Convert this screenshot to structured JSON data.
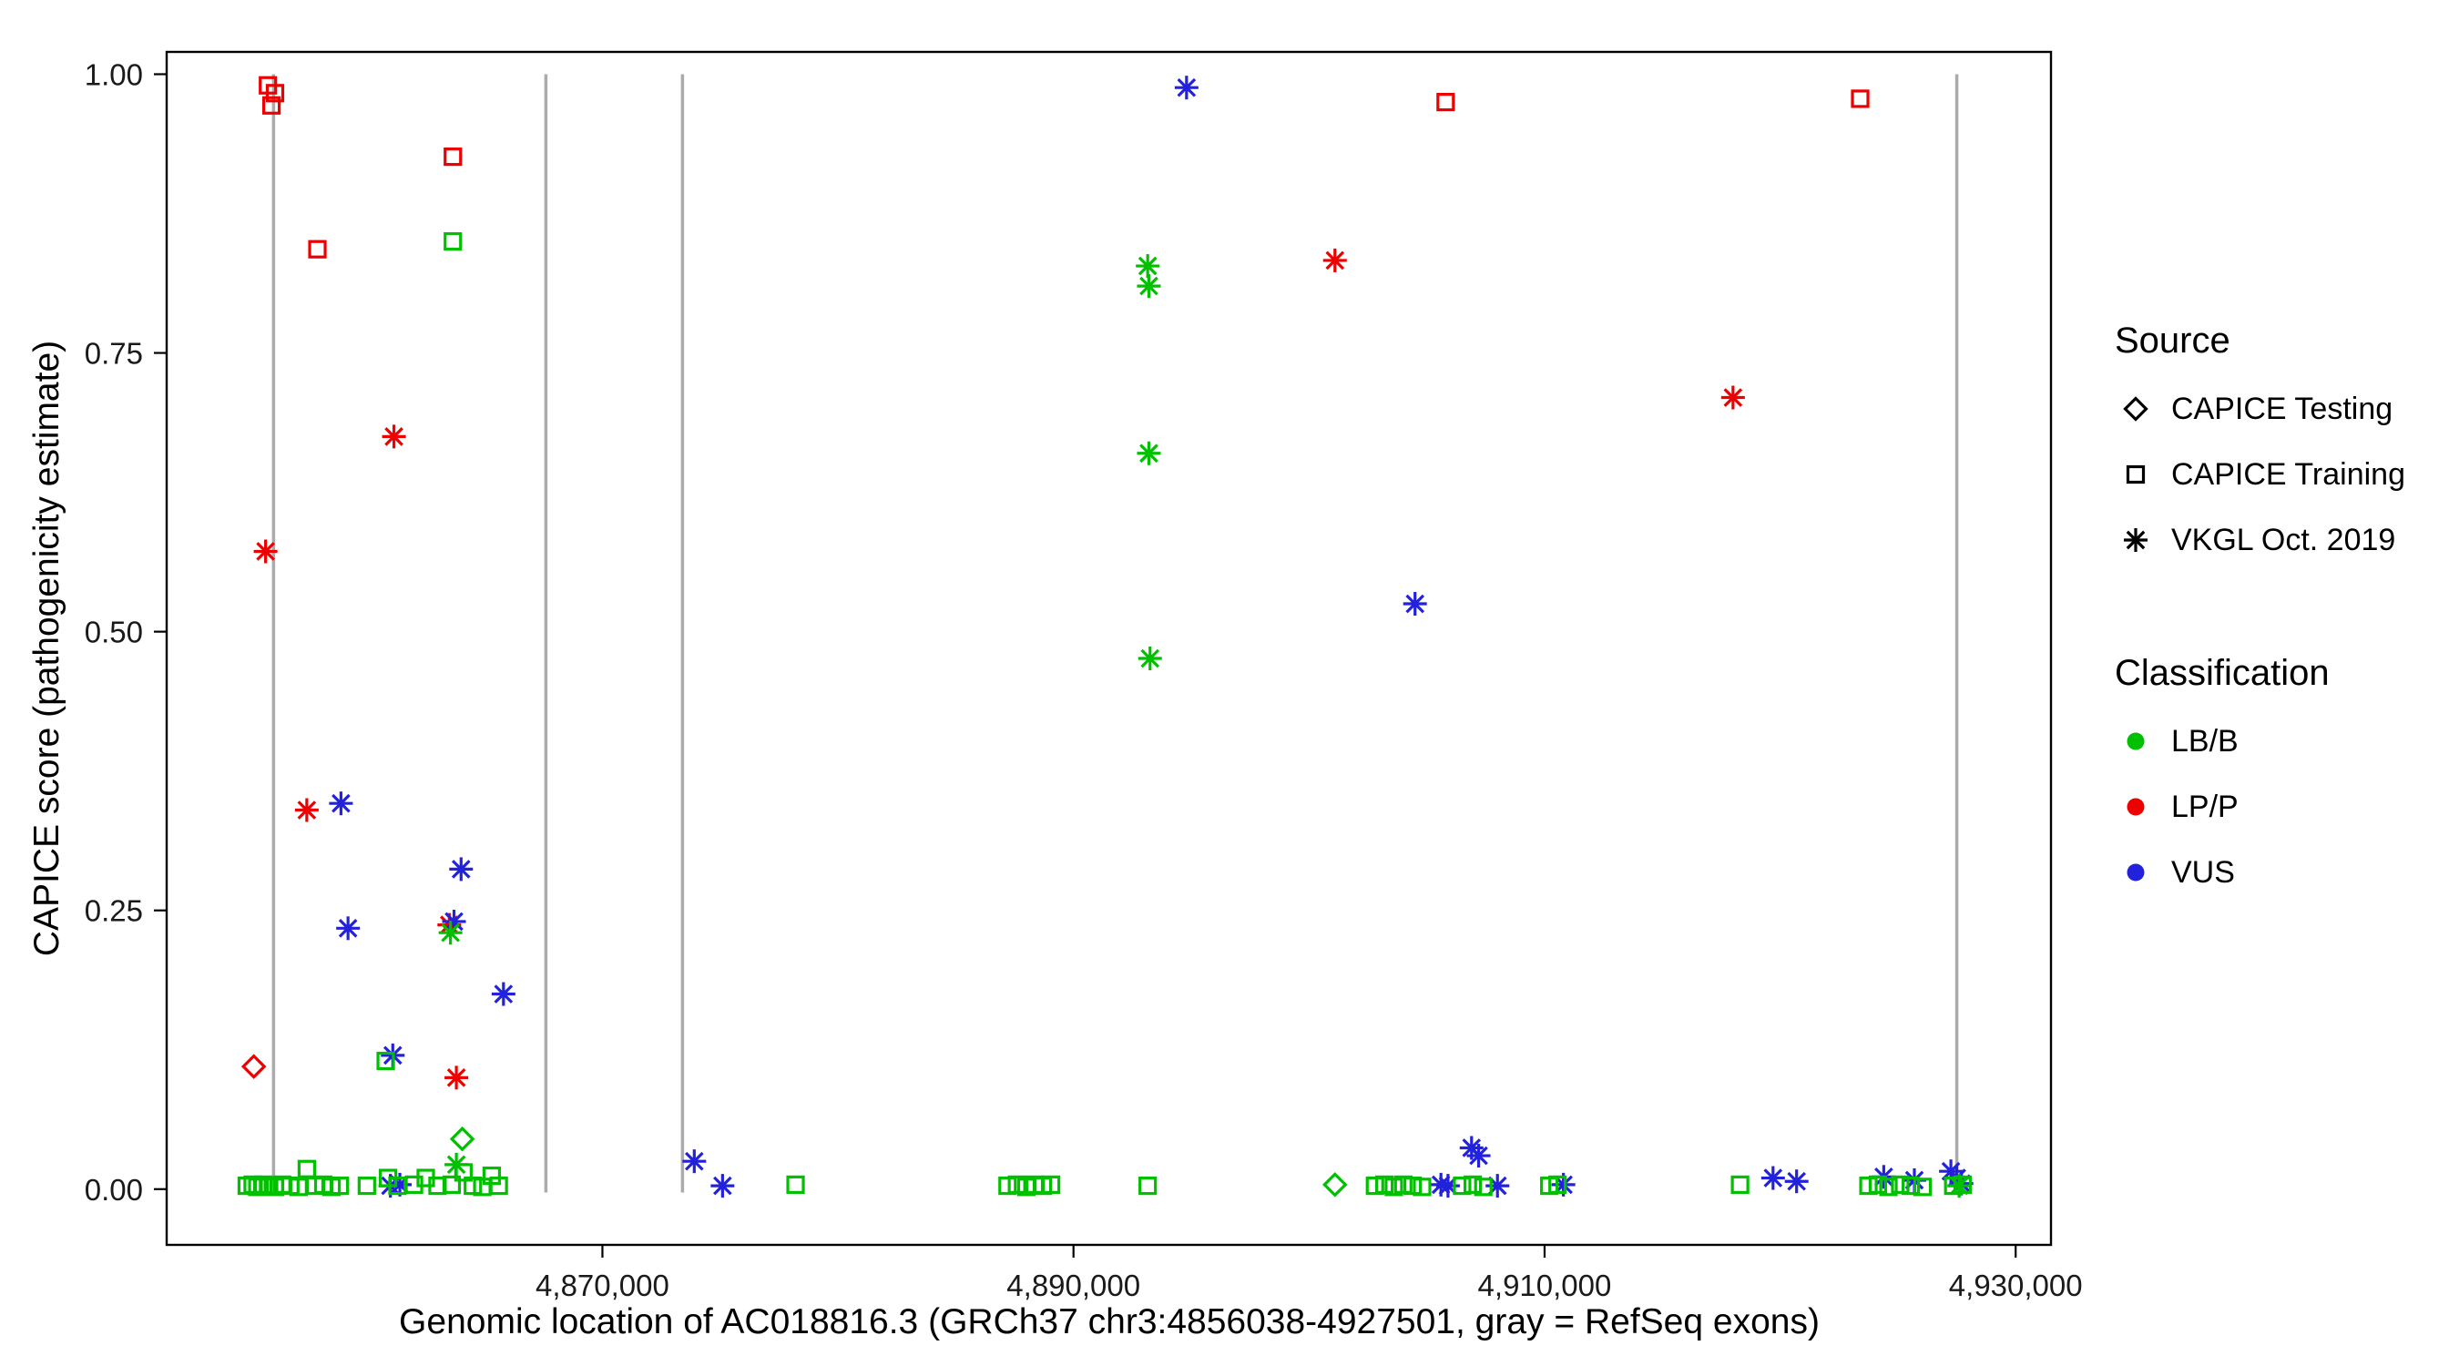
{
  "chart_data": {
    "type": "scatter",
    "title": "",
    "xlabel": "Genomic location of AC018816.3 (GRCh37 chr3:4856038-4927501, gray = RefSeq exons)",
    "ylabel": "CAPICE score (pathogenicity estimate)",
    "xlim": [
      4851500,
      4931500
    ],
    "ylim": [
      -0.05,
      1.02
    ],
    "grid": "off",
    "panel_border_color": "#000000",
    "background_color": "#ffffff",
    "x_ticks": [
      {
        "value": 4870000,
        "label": "4,870,000"
      },
      {
        "value": 4890000,
        "label": "4,890,000"
      },
      {
        "value": 4910000,
        "label": "4,910,000"
      },
      {
        "value": 4930000,
        "label": "4,930,000"
      }
    ],
    "y_ticks": [
      {
        "value": 0.0,
        "label": "0.00"
      },
      {
        "value": 0.25,
        "label": "0.25"
      },
      {
        "value": 0.5,
        "label": "0.50"
      },
      {
        "value": 0.75,
        "label": "0.75"
      },
      {
        "value": 1.0,
        "label": "1.00"
      }
    ],
    "exon_lines": {
      "meaning": "RefSeq exons",
      "color": "#ABABAB",
      "positions": [
        4856038,
        4867600,
        4873400,
        4927501
      ],
      "y_from": -0.003,
      "y_to": 1.0
    },
    "legend": {
      "position": "right",
      "source": {
        "title": "Source",
        "items": [
          {
            "label": "CAPICE Testing",
            "shape": "diamond"
          },
          {
            "label": "CAPICE Training",
            "shape": "square"
          },
          {
            "label": "VKGL Oct. 2019",
            "shape": "asterisk"
          }
        ]
      },
      "classification": {
        "title": "Classification",
        "items": [
          {
            "label": "LB/B",
            "color": "#00C000"
          },
          {
            "label": "LP/P",
            "color": "#EE0000"
          },
          {
            "label": "VUS",
            "color": "#2222DD"
          }
        ]
      }
    },
    "source_shapes": {
      "CAPICE Testing": "diamond",
      "CAPICE Training": "square",
      "VKGL Oct. 2019": "asterisk"
    },
    "classification_colors": {
      "LB/B": "#00C000",
      "LP/P": "#EE0000",
      "VUS": "#2222DD"
    },
    "points_columns": [
      "genomic_position",
      "capice_score",
      "source",
      "classification"
    ],
    "points": [
      [
        4855800,
        0.99,
        "CAPICE Training",
        "LP/P"
      ],
      [
        4856100,
        0.983,
        "CAPICE Training",
        "LP/P"
      ],
      [
        4855950,
        0.972,
        "CAPICE Training",
        "LP/P"
      ],
      [
        4857900,
        0.843,
        "CAPICE Training",
        "LP/P"
      ],
      [
        4863650,
        0.926,
        "CAPICE Training",
        "LP/P"
      ],
      [
        4905800,
        0.975,
        "CAPICE Training",
        "LP/P"
      ],
      [
        4923400,
        0.978,
        "CAPICE Training",
        "LP/P"
      ],
      [
        4863650,
        0.85,
        "CAPICE Training",
        "LB/B"
      ],
      [
        4855200,
        0.11,
        "CAPICE Testing",
        "LP/P"
      ],
      [
        4864050,
        0.045,
        "CAPICE Testing",
        "LB/B"
      ],
      [
        4901100,
        0.004,
        "CAPICE Testing",
        "LB/B"
      ],
      [
        4861150,
        0.675,
        "VKGL Oct. 2019",
        "LP/P"
      ],
      [
        4855700,
        0.572,
        "VKGL Oct. 2019",
        "LP/P"
      ],
      [
        4857450,
        0.34,
        "VKGL Oct. 2019",
        "LP/P"
      ],
      [
        4863500,
        0.237,
        "VKGL Oct. 2019",
        "LP/P"
      ],
      [
        4863800,
        0.1,
        "VKGL Oct. 2019",
        "LP/P"
      ],
      [
        4901100,
        0.833,
        "VKGL Oct. 2019",
        "LP/P"
      ],
      [
        4918000,
        0.71,
        "VKGL Oct. 2019",
        "LP/P"
      ],
      [
        4858900,
        0.346,
        "VKGL Oct. 2019",
        "VUS"
      ],
      [
        4859200,
        0.234,
        "VKGL Oct. 2019",
        "VUS"
      ],
      [
        4864000,
        0.287,
        "VKGL Oct. 2019",
        "VUS"
      ],
      [
        4863700,
        0.24,
        "VKGL Oct. 2019",
        "VUS"
      ],
      [
        4865800,
        0.175,
        "VKGL Oct. 2019",
        "VUS"
      ],
      [
        4861100,
        0.12,
        "VKGL Oct. 2019",
        "VUS"
      ],
      [
        4894800,
        0.988,
        "VKGL Oct. 2019",
        "VUS"
      ],
      [
        4904500,
        0.525,
        "VKGL Oct. 2019",
        "VUS"
      ],
      [
        4873900,
        0.025,
        "VKGL Oct. 2019",
        "VUS"
      ],
      [
        4875100,
        0.003,
        "VKGL Oct. 2019",
        "VUS"
      ],
      [
        4861000,
        0.003,
        "VKGL Oct. 2019",
        "VUS"
      ],
      [
        4861400,
        0.004,
        "VKGL Oct. 2019",
        "VUS"
      ],
      [
        4906900,
        0.037,
        "VKGL Oct. 2019",
        "VUS"
      ],
      [
        4907200,
        0.03,
        "VKGL Oct. 2019",
        "VUS"
      ],
      [
        4905600,
        0.004,
        "VKGL Oct. 2019",
        "VUS"
      ],
      [
        4905900,
        0.003,
        "VKGL Oct. 2019",
        "VUS"
      ],
      [
        4908000,
        0.003,
        "VKGL Oct. 2019",
        "VUS"
      ],
      [
        4910800,
        0.004,
        "VKGL Oct. 2019",
        "VUS"
      ],
      [
        4919700,
        0.01,
        "VKGL Oct. 2019",
        "VUS"
      ],
      [
        4920700,
        0.007,
        "VKGL Oct. 2019",
        "VUS"
      ],
      [
        4924400,
        0.011,
        "VKGL Oct. 2019",
        "VUS"
      ],
      [
        4925700,
        0.008,
        "VKGL Oct. 2019",
        "VUS"
      ],
      [
        4927250,
        0.016,
        "VKGL Oct. 2019",
        "VUS"
      ],
      [
        4927500,
        0.01,
        "VKGL Oct. 2019",
        "VUS"
      ],
      [
        4927700,
        0.005,
        "VKGL Oct. 2019",
        "VUS"
      ],
      [
        4893150,
        0.828,
        "VKGL Oct. 2019",
        "LB/B"
      ],
      [
        4893200,
        0.81,
        "VKGL Oct. 2019",
        "LB/B"
      ],
      [
        4893200,
        0.66,
        "VKGL Oct. 2019",
        "LB/B"
      ],
      [
        4893250,
        0.476,
        "VKGL Oct. 2019",
        "LB/B"
      ],
      [
        4863550,
        0.23,
        "VKGL Oct. 2019",
        "LB/B"
      ],
      [
        4863800,
        0.022,
        "VKGL Oct. 2019",
        "LB/B"
      ],
      [
        4927600,
        0.003,
        "VKGL Oct. 2019",
        "LB/B"
      ],
      [
        4854900,
        0.003,
        "CAPICE Training",
        "LB/B"
      ],
      [
        4855150,
        0.004,
        "CAPICE Training",
        "LB/B"
      ],
      [
        4855350,
        0.002,
        "CAPICE Training",
        "LB/B"
      ],
      [
        4855600,
        0.004,
        "CAPICE Training",
        "LB/B"
      ],
      [
        4855850,
        0.003,
        "CAPICE Training",
        "LB/B"
      ],
      [
        4856100,
        0.002,
        "CAPICE Training",
        "LB/B"
      ],
      [
        4856400,
        0.004,
        "CAPICE Training",
        "LB/B"
      ],
      [
        4856750,
        0.003,
        "CAPICE Training",
        "LB/B"
      ],
      [
        4857100,
        0.002,
        "CAPICE Training",
        "LB/B"
      ],
      [
        4857450,
        0.018,
        "CAPICE Training",
        "LB/B"
      ],
      [
        4857800,
        0.003,
        "CAPICE Training",
        "LB/B"
      ],
      [
        4858150,
        0.004,
        "CAPICE Training",
        "LB/B"
      ],
      [
        4858500,
        0.002,
        "CAPICE Training",
        "LB/B"
      ],
      [
        4858850,
        0.003,
        "CAPICE Training",
        "LB/B"
      ],
      [
        4860000,
        0.003,
        "CAPICE Training",
        "LB/B"
      ],
      [
        4860800,
        0.115,
        "CAPICE Training",
        "LB/B"
      ],
      [
        4860900,
        0.01,
        "CAPICE Training",
        "LB/B"
      ],
      [
        4861300,
        0.003,
        "CAPICE Training",
        "LB/B"
      ],
      [
        4862000,
        0.004,
        "CAPICE Training",
        "LB/B"
      ],
      [
        4862500,
        0.01,
        "CAPICE Training",
        "LB/B"
      ],
      [
        4863000,
        0.003,
        "CAPICE Training",
        "LB/B"
      ],
      [
        4863600,
        0.004,
        "CAPICE Training",
        "LB/B"
      ],
      [
        4864100,
        0.015,
        "CAPICE Training",
        "LB/B"
      ],
      [
        4864500,
        0.003,
        "CAPICE Training",
        "LB/B"
      ],
      [
        4864900,
        0.002,
        "CAPICE Training",
        "LB/B"
      ],
      [
        4865300,
        0.012,
        "CAPICE Training",
        "LB/B"
      ],
      [
        4865600,
        0.003,
        "CAPICE Training",
        "LB/B"
      ],
      [
        4878200,
        0.004,
        "CAPICE Training",
        "LB/B"
      ],
      [
        4887200,
        0.003,
        "CAPICE Training",
        "LB/B"
      ],
      [
        4887600,
        0.004,
        "CAPICE Training",
        "LB/B"
      ],
      [
        4888000,
        0.002,
        "CAPICE Training",
        "LB/B"
      ],
      [
        4888350,
        0.004,
        "CAPICE Training",
        "LB/B"
      ],
      [
        4888700,
        0.003,
        "CAPICE Training",
        "LB/B"
      ],
      [
        4889050,
        0.004,
        "CAPICE Training",
        "LB/B"
      ],
      [
        4893150,
        0.003,
        "CAPICE Training",
        "LB/B"
      ],
      [
        4902800,
        0.003,
        "CAPICE Training",
        "LB/B"
      ],
      [
        4903200,
        0.004,
        "CAPICE Training",
        "LB/B"
      ],
      [
        4903600,
        0.002,
        "CAPICE Training",
        "LB/B"
      ],
      [
        4904000,
        0.004,
        "CAPICE Training",
        "LB/B"
      ],
      [
        4904400,
        0.003,
        "CAPICE Training",
        "LB/B"
      ],
      [
        4904800,
        0.002,
        "CAPICE Training",
        "LB/B"
      ],
      [
        4906500,
        0.003,
        "CAPICE Training",
        "LB/B"
      ],
      [
        4906950,
        0.004,
        "CAPICE Training",
        "LB/B"
      ],
      [
        4907400,
        0.002,
        "CAPICE Training",
        "LB/B"
      ],
      [
        4910200,
        0.003,
        "CAPICE Training",
        "LB/B"
      ],
      [
        4910550,
        0.004,
        "CAPICE Training",
        "LB/B"
      ],
      [
        4918300,
        0.004,
        "CAPICE Training",
        "LB/B"
      ],
      [
        4923750,
        0.003,
        "CAPICE Training",
        "LB/B"
      ],
      [
        4924150,
        0.004,
        "CAPICE Training",
        "LB/B"
      ],
      [
        4924600,
        0.002,
        "CAPICE Training",
        "LB/B"
      ],
      [
        4925100,
        0.004,
        "CAPICE Training",
        "LB/B"
      ],
      [
        4925550,
        0.003,
        "CAPICE Training",
        "LB/B"
      ],
      [
        4926050,
        0.002,
        "CAPICE Training",
        "LB/B"
      ],
      [
        4927350,
        0.003,
        "CAPICE Training",
        "LB/B"
      ],
      [
        4927750,
        0.004,
        "CAPICE Training",
        "LB/B"
      ]
    ]
  }
}
